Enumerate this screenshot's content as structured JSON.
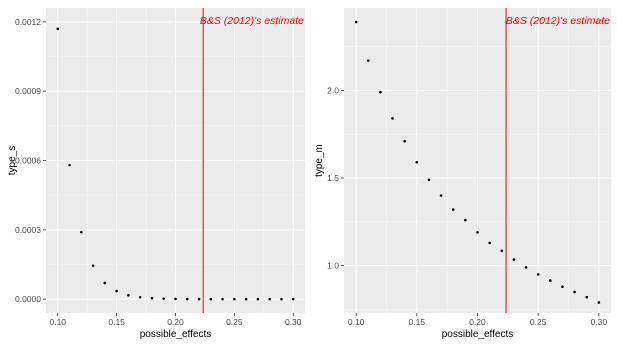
{
  "chart_data": [
    {
      "type": "scatter",
      "xlabel": "possible_effects",
      "ylabel": "type_s",
      "xlim": [
        0.09,
        0.31
      ],
      "ylim": [
        -6e-05,
        0.00126
      ],
      "x_ticks": [
        0.1,
        0.15,
        0.2,
        0.25,
        0.3
      ],
      "x_tick_labels": [
        "0.10",
        "0.15",
        "0.20",
        "0.25",
        "0.30"
      ],
      "y_ticks": [
        0.0,
        0.0003,
        0.0006,
        0.0009,
        0.0012
      ],
      "y_tick_labels": [
        "0.0000",
        "0.0003",
        "0.0006",
        "0.0009",
        "0.0012"
      ],
      "grid": true,
      "x": [
        0.1,
        0.11,
        0.12,
        0.13,
        0.14,
        0.15,
        0.16,
        0.17,
        0.18,
        0.19,
        0.2,
        0.21,
        0.22,
        0.23,
        0.24,
        0.25,
        0.26,
        0.27,
        0.28,
        0.29,
        0.3
      ],
      "y": [
        0.00117,
        0.00058,
        0.00029,
        0.000145,
        7e-05,
        3.5e-05,
        1.7e-05,
        8e-06,
        4e-06,
        2e-06,
        1e-06,
        5e-07,
        3e-07,
        1e-07,
        0.0,
        0.0,
        0.0,
        0.0,
        0.0,
        0.0,
        0.0
      ],
      "vline": {
        "x": 0.2235,
        "color": "#ff0000"
      },
      "annotation": {
        "text": "B&S (2012)'s estimate",
        "color": "#ff0000"
      }
    },
    {
      "type": "scatter",
      "xlabel": "possible_effects",
      "ylabel": "type_m",
      "xlim": [
        0.09,
        0.31
      ],
      "ylim": [
        0.73,
        2.47
      ],
      "x_ticks": [
        0.1,
        0.15,
        0.2,
        0.25,
        0.3
      ],
      "x_tick_labels": [
        "0.10",
        "0.15",
        "0.20",
        "0.25",
        "0.30"
      ],
      "y_ticks": [
        1.0,
        1.5,
        2.0
      ],
      "y_tick_labels": [
        "1.0",
        "1.5",
        "2.0"
      ],
      "grid": true,
      "x": [
        0.1,
        0.11,
        0.12,
        0.13,
        0.14,
        0.15,
        0.16,
        0.17,
        0.18,
        0.19,
        0.2,
        0.21,
        0.22,
        0.23,
        0.24,
        0.25,
        0.26,
        0.27,
        0.28,
        0.29,
        0.3
      ],
      "y": [
        2.39,
        2.17,
        1.99,
        1.84,
        1.71,
        1.59,
        1.49,
        1.4,
        1.32,
        1.26,
        1.19,
        1.13,
        1.085,
        1.035,
        0.99,
        0.95,
        0.915,
        0.88,
        0.85,
        0.82,
        0.79
      ],
      "vline": {
        "x": 0.2235,
        "color": "#ff0000"
      },
      "annotation": {
        "text": "B&S (2012)'s estimate",
        "color": "#ff0000"
      }
    }
  ]
}
